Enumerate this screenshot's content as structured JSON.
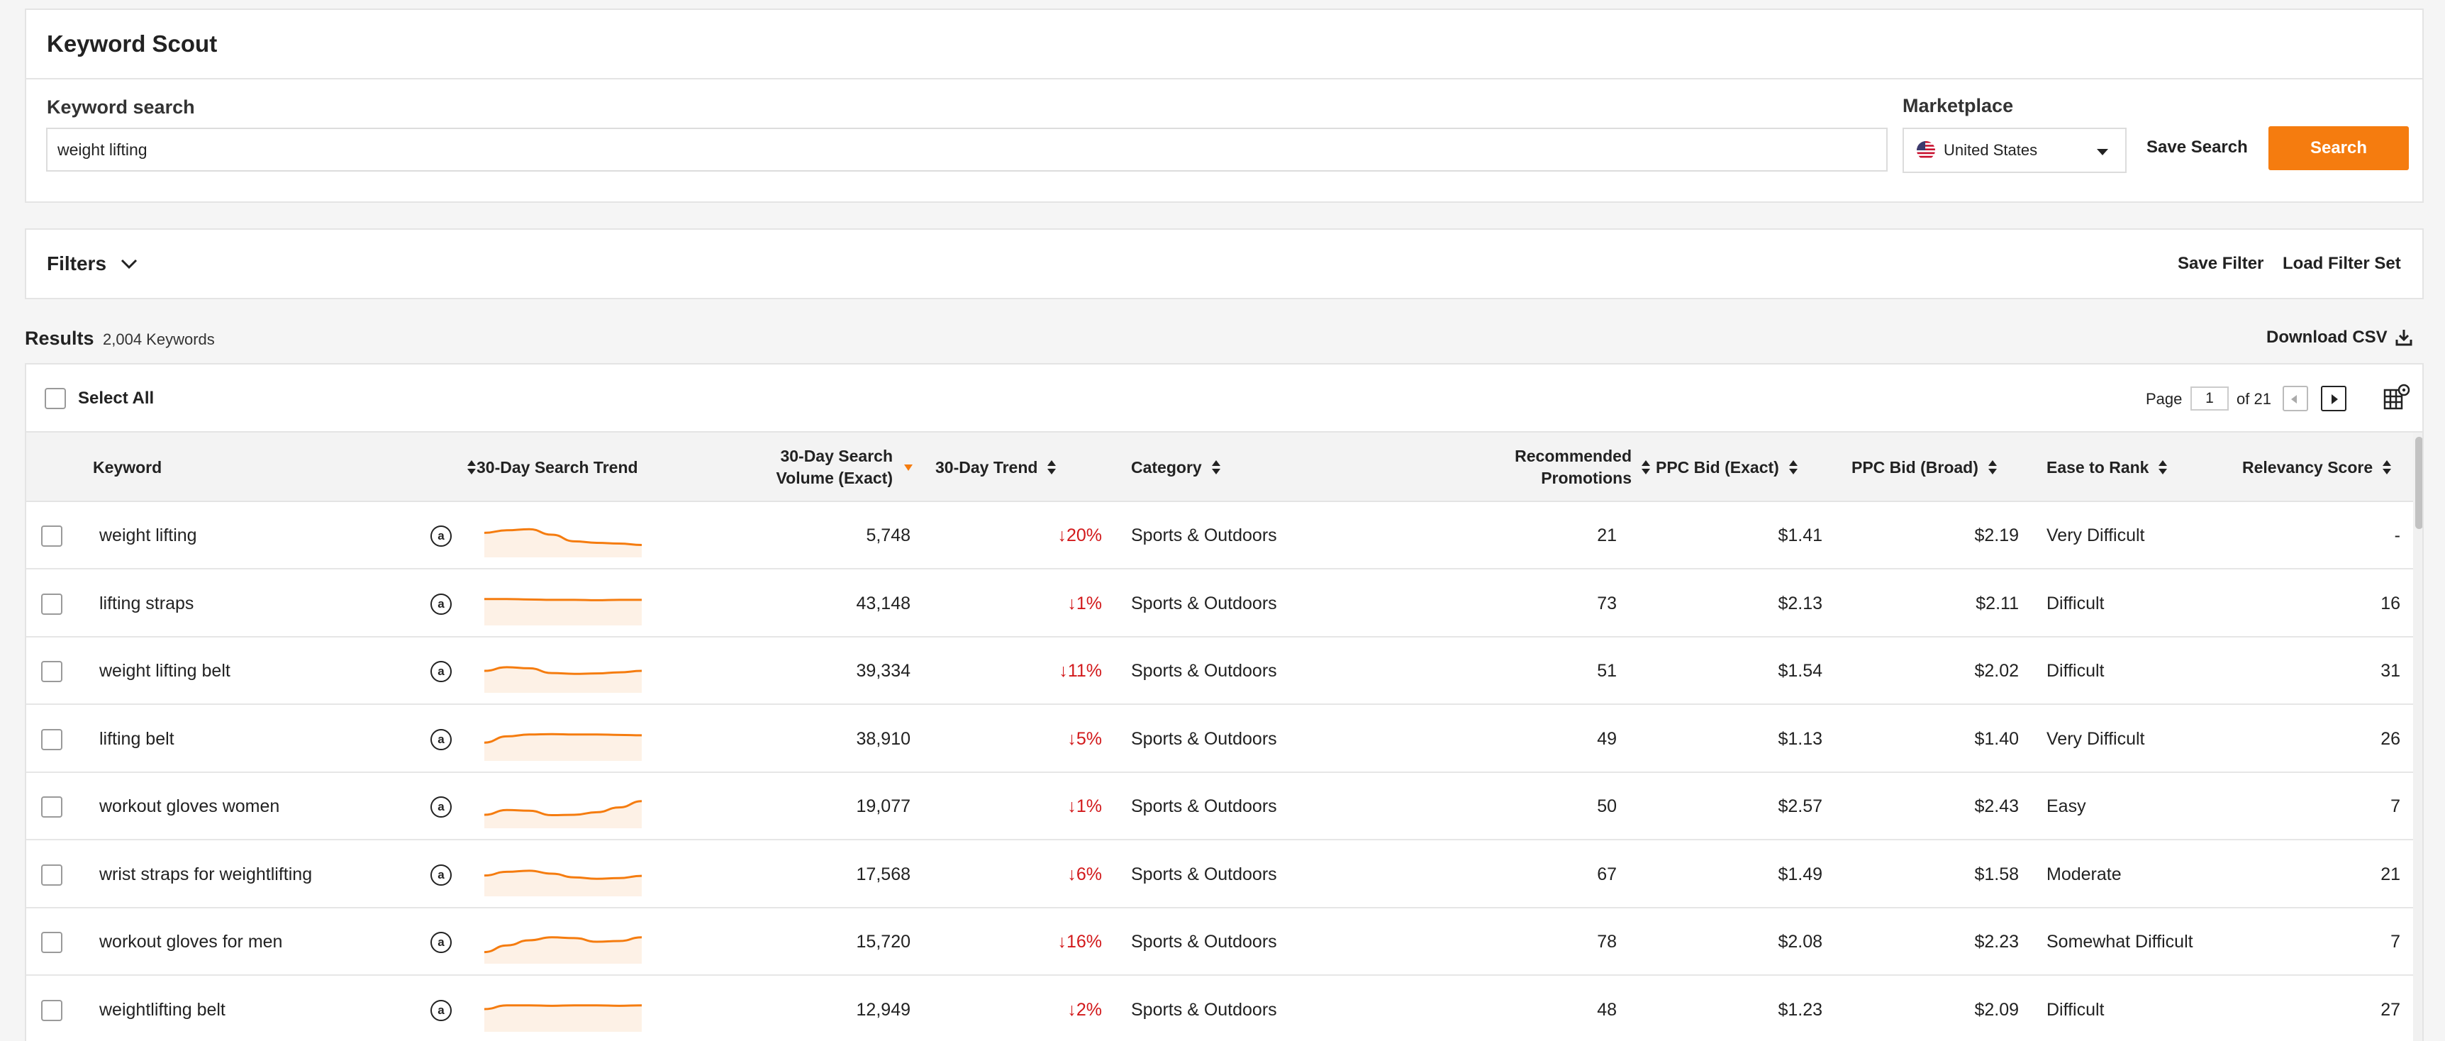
{
  "app": {
    "title": "Keyword Scout"
  },
  "search": {
    "label": "Keyword search",
    "value": "weight lifting",
    "marketplace_label": "Marketplace",
    "marketplace_value": "United States",
    "save_label": "Save Search",
    "search_label": "Search"
  },
  "filters": {
    "label": "Filters",
    "save_label": "Save Filter",
    "load_label": "Load Filter Set"
  },
  "results": {
    "label": "Results",
    "count": "2,004 Keywords",
    "download_label": "Download CSV"
  },
  "toolbar": {
    "select_all": "Select All",
    "page_label": "Page",
    "page": "1",
    "of_label": "of 21"
  },
  "columns": {
    "keyword": "Keyword",
    "trend_chart": "30-Day Search Trend",
    "volume_line1": "30-Day Search",
    "volume_line2": "Volume (Exact)",
    "trend": "30-Day Trend",
    "category": "Category",
    "promos_line1": "Recommended",
    "promos_line2": "Promotions",
    "ppc_exact": "PPC Bid (Exact)",
    "ppc_broad": "PPC Bid (Broad)",
    "ease": "Ease to Rank",
    "relevancy": "Relevancy Score"
  },
  "colors": {
    "accent": "#f57c0f",
    "negative": "#d2191b"
  },
  "rows": [
    {
      "keyword": "weight lifting",
      "volume": "5,748",
      "trend": "↓20%",
      "category": "Sports & Outdoors",
      "promotions": "21",
      "ppc_exact": "$1.41",
      "ppc_broad": "$2.19",
      "ease": "Very Difficult",
      "relevancy": "-",
      "spark": [
        0.55,
        0.62,
        0.65,
        0.5,
        0.32,
        0.28,
        0.26,
        0.22
      ]
    },
    {
      "keyword": "lifting straps",
      "volume": "43,148",
      "trend": "↓1%",
      "category": "Sports & Outdoors",
      "promotions": "73",
      "ppc_exact": "$2.13",
      "ppc_broad": "$2.11",
      "ease": "Difficult",
      "relevancy": "16",
      "spark": [
        0.6,
        0.6,
        0.59,
        0.58,
        0.58,
        0.57,
        0.58,
        0.58
      ]
    },
    {
      "keyword": "weight lifting belt",
      "volume": "39,334",
      "trend": "↓11%",
      "category": "Sports & Outdoors",
      "promotions": "51",
      "ppc_exact": "$1.54",
      "ppc_broad": "$2.02",
      "ease": "Difficult",
      "relevancy": "31",
      "spark": [
        0.48,
        0.58,
        0.55,
        0.42,
        0.4,
        0.41,
        0.44,
        0.48
      ]
    },
    {
      "keyword": "lifting belt",
      "volume": "38,910",
      "trend": "↓5%",
      "category": "Sports & Outdoors",
      "promotions": "49",
      "ppc_exact": "$1.13",
      "ppc_broad": "$1.40",
      "ease": "Very Difficult",
      "relevancy": "26",
      "spark": [
        0.38,
        0.55,
        0.6,
        0.61,
        0.6,
        0.6,
        0.59,
        0.58
      ]
    },
    {
      "keyword": "workout gloves women",
      "volume": "19,077",
      "trend": "↓1%",
      "category": "Sports & Outdoors",
      "promotions": "50",
      "ppc_exact": "$2.57",
      "ppc_broad": "$2.43",
      "ease": "Easy",
      "relevancy": "7",
      "spark": [
        0.25,
        0.38,
        0.36,
        0.24,
        0.25,
        0.32,
        0.45,
        0.62
      ]
    },
    {
      "keyword": "wrist straps for weightlifting",
      "volume": "17,568",
      "trend": "↓6%",
      "category": "Sports & Outdoors",
      "promotions": "67",
      "ppc_exact": "$1.49",
      "ppc_broad": "$1.58",
      "ease": "Moderate",
      "relevancy": "21",
      "spark": [
        0.45,
        0.55,
        0.58,
        0.5,
        0.4,
        0.36,
        0.38,
        0.44
      ]
    },
    {
      "keyword": "workout gloves for men",
      "volume": "15,720",
      "trend": "↓16%",
      "category": "Sports & Outdoors",
      "promotions": "78",
      "ppc_exact": "$2.08",
      "ppc_broad": "$2.23",
      "ease": "Somewhat Difficult",
      "relevancy": "7",
      "spark": [
        0.2,
        0.38,
        0.52,
        0.6,
        0.58,
        0.48,
        0.5,
        0.6
      ]
    },
    {
      "keyword": "weightlifting belt",
      "volume": "12,949",
      "trend": "↓2%",
      "category": "Sports & Outdoors",
      "promotions": "48",
      "ppc_exact": "$1.23",
      "ppc_broad": "$2.09",
      "ease": "Difficult",
      "relevancy": "27",
      "spark": [
        0.5,
        0.6,
        0.6,
        0.59,
        0.6,
        0.6,
        0.59,
        0.6
      ]
    }
  ]
}
